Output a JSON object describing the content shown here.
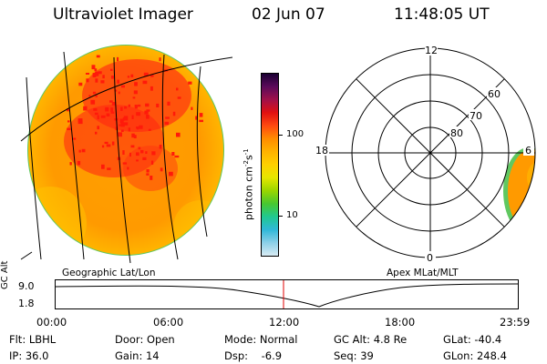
{
  "header": {
    "instrument": "Ultraviolet Imager",
    "date": "02 Jun 07",
    "time": "11:48:05 UT"
  },
  "colorbar": {
    "unit_main": "photon cm",
    "unit_exp1": "-2",
    "unit_s": "s",
    "unit_exp2": "-1",
    "tick_100": "100",
    "tick_10": "10",
    "colors": [
      "#1a0033",
      "#5a0a5a",
      "#a0104a",
      "#e01010",
      "#ff4a10",
      "#ff8c00",
      "#ffb300",
      "#ffd000",
      "#e6e600",
      "#9ad600",
      "#48c830",
      "#20c890",
      "#30b8d8",
      "#8cd0e8",
      "#d8ecf4"
    ]
  },
  "polar_plot": {
    "hour_labels": {
      "top": "12",
      "left": "18",
      "right": "6",
      "bottom": "0"
    },
    "lat_labels": [
      "60",
      "70",
      "80"
    ]
  },
  "timeline": {
    "left_label": "Geographic Lat/Lon",
    "right_label": "Apex MLat/MLT",
    "axis_title": "GC Alt",
    "y_ticks": [
      "9.0",
      "1.8"
    ],
    "x_ticks": [
      "00:00",
      "06:00",
      "12:00",
      "18:00",
      "23:59"
    ],
    "current_time_color": "#e00000"
  },
  "footer": {
    "flt": "Flt: LBHL",
    "ip": "IP: 36.0",
    "door": "Door: Open",
    "gain": "Gain: 14",
    "mode": "Mode: Normal",
    "dsp": "Dsp:    -6.9",
    "gcalt": "GC Alt: 4.8 Re",
    "seq": "Seq: 39",
    "glat": "GLat: -40.4",
    "glon": "GLon: 248.4"
  }
}
